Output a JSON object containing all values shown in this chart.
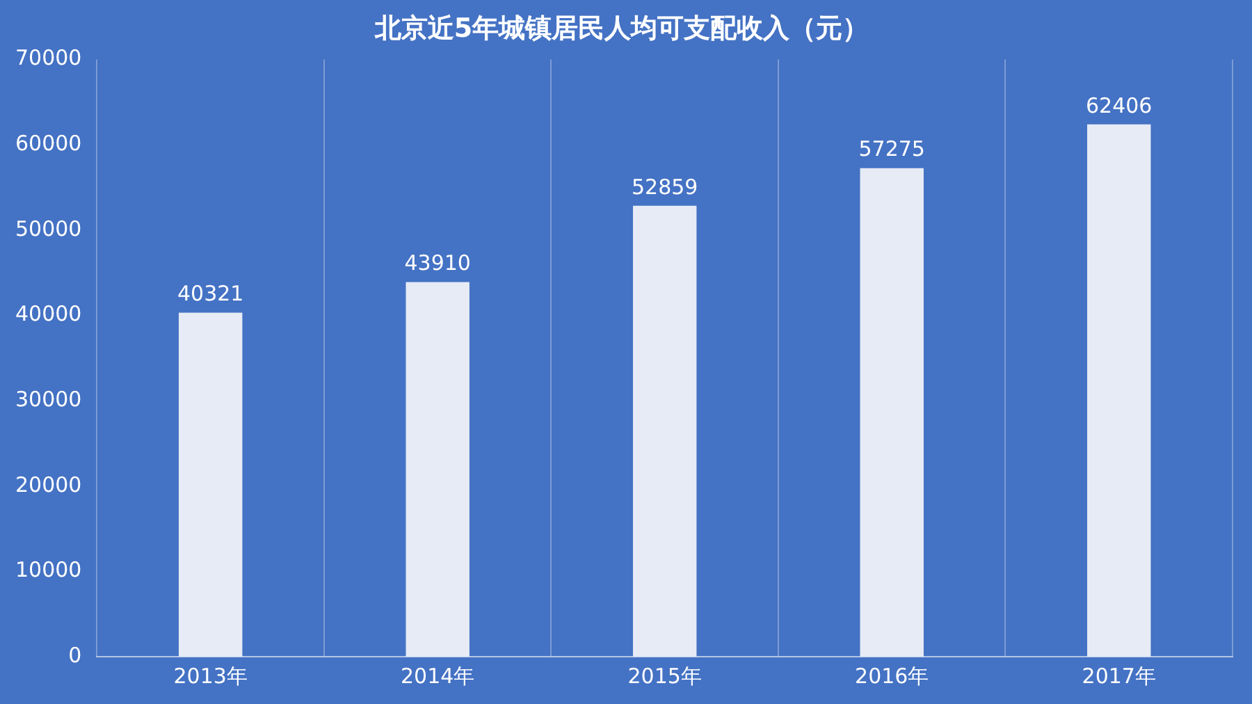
{
  "chart_data": {
    "type": "bar",
    "title": "北京近5年城镇居民人均可支配收入（元）",
    "categories": [
      "2013年",
      "2014年",
      "2015年",
      "2016年",
      "2017年"
    ],
    "values": [
      40321,
      43910,
      52859,
      57275,
      62406
    ],
    "color": "#e6ebf5",
    "ylim": [
      0,
      70000
    ],
    "yticks": [
      0,
      10000,
      20000,
      30000,
      40000,
      50000,
      60000,
      70000
    ],
    "grid": "x",
    "legend": false,
    "data_labels": true
  }
}
